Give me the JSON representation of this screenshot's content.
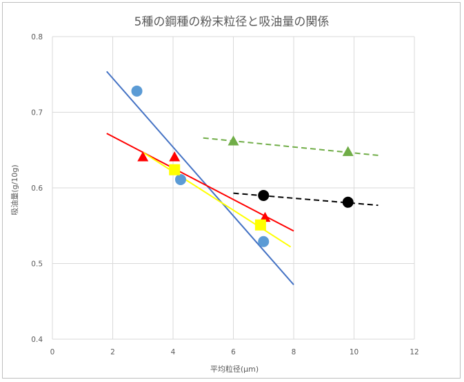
{
  "chart_data": {
    "type": "scatter",
    "title": "5種の鋼種の粉末粒径と吸油量の関係",
    "xlabel": "平均粒径(μm)",
    "ylabel": "吸油量(g/10g)",
    "xlim": [
      0,
      12
    ],
    "ylim": [
      0.4,
      0.8
    ],
    "x_ticks": [
      0,
      2,
      4,
      6,
      8,
      10,
      12
    ],
    "y_ticks": [
      "0.4",
      "0.5",
      "0.6",
      "0.7",
      "0.8"
    ],
    "grid": true,
    "legend": false,
    "series": [
      {
        "marker": "circle",
        "color": "#5b9bd5",
        "points": [
          [
            2.8,
            0.728
          ],
          [
            4.25,
            0.611
          ],
          [
            7.0,
            0.529
          ]
        ],
        "trendline": {
          "x": [
            1.8,
            8.0
          ],
          "y": [
            0.754,
            0.472
          ],
          "style": "solid",
          "color": "#4472c4"
        }
      },
      {
        "marker": "triangle",
        "color": "#ff0000",
        "points": [
          [
            3.0,
            0.641
          ],
          [
            4.05,
            0.641
          ],
          [
            7.05,
            0.561
          ]
        ],
        "trendline": {
          "x": [
            1.8,
            8.0
          ],
          "y": [
            0.672,
            0.543
          ],
          "style": "solid",
          "color": "#ff0000"
        }
      },
      {
        "marker": "square",
        "color": "#ffff00",
        "points": [
          [
            4.05,
            0.624
          ],
          [
            6.9,
            0.551
          ]
        ],
        "trendline": {
          "x": [
            3.0,
            7.9
          ],
          "y": [
            0.647,
            0.522
          ],
          "style": "solid",
          "color": "#ffff00"
        }
      },
      {
        "marker": "triangle",
        "color": "#70ad47",
        "points": [
          [
            6.0,
            0.662
          ],
          [
            9.8,
            0.648
          ]
        ],
        "trendline": {
          "x": [
            5.0,
            10.8
          ],
          "y": [
            0.666,
            0.643
          ],
          "style": "dashed",
          "color": "#70ad47"
        }
      },
      {
        "marker": "circle",
        "color": "#000000",
        "points": [
          [
            7.0,
            0.59
          ],
          [
            9.8,
            0.581
          ]
        ],
        "trendline": {
          "x": [
            6.0,
            10.8
          ],
          "y": [
            0.593,
            0.577
          ],
          "style": "dashed",
          "color": "#000000"
        }
      }
    ]
  }
}
